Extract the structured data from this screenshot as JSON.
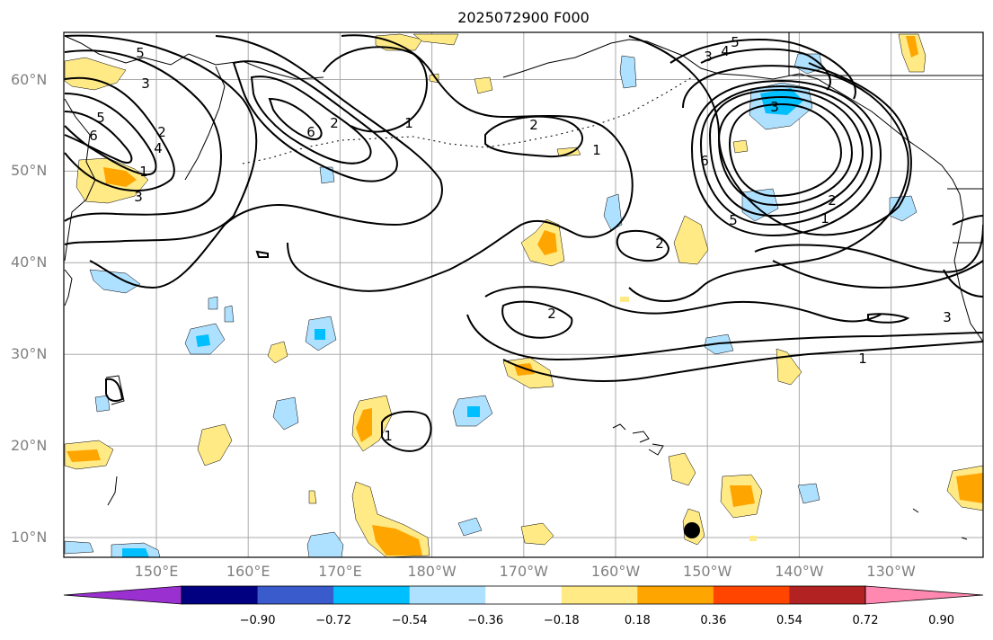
{
  "title": "2025072900 F000",
  "lat_labels": [
    {
      "text": "60°N",
      "lat": 60
    },
    {
      "text": "50°N",
      "lat": 50
    },
    {
      "text": "40°N",
      "lat": 40
    },
    {
      "text": "30°N",
      "lat": 30
    },
    {
      "text": "20°N",
      "lat": 20
    },
    {
      "text": "10°N",
      "lat": 10
    }
  ],
  "lon_labels": [
    {
      "text": "150°E",
      "lon": 150
    },
    {
      "text": "160°E",
      "lon": 160
    },
    {
      "text": "170°E",
      "lon": 170
    },
    {
      "text": "180°W",
      "lon": 180
    },
    {
      "text": "170°W",
      "lon": 190
    },
    {
      "text": "160°W",
      "lon": 200
    },
    {
      "text": "150°W",
      "lon": 210
    },
    {
      "text": "140°W",
      "lon": 220
    },
    {
      "text": "130°W",
      "lon": 230
    }
  ],
  "colorbar": {
    "colors": [
      "#9b30d0",
      "#000080",
      "#3a5bcc",
      "#00bfff",
      "#aee0ff",
      "#ffffff",
      "#ffea86",
      "#ffa500",
      "#ff4500",
      "#b22222",
      "#ff88b0"
    ],
    "ticks": [
      "−0.90",
      "−0.72",
      "−0.54",
      "−0.36",
      "−0.18",
      "0.18",
      "0.36",
      "0.54",
      "0.72",
      "0.90"
    ]
  },
  "contour_labels": [
    "5",
    "6",
    "2",
    "4",
    "3",
    "1",
    "3",
    "5",
    "6",
    "2",
    "1",
    "2",
    "1",
    "3",
    "4",
    "5",
    "6",
    "5",
    "1",
    "2",
    "2",
    "3",
    "3",
    "2",
    "1",
    "1"
  ],
  "colors": {
    "positive_light": "#ffea86",
    "positive_mid": "#ffa500",
    "negative_light": "#aee0ff",
    "negative_mid": "#00bfff",
    "marker": "#000000",
    "grid": "#aaaaaa"
  }
}
